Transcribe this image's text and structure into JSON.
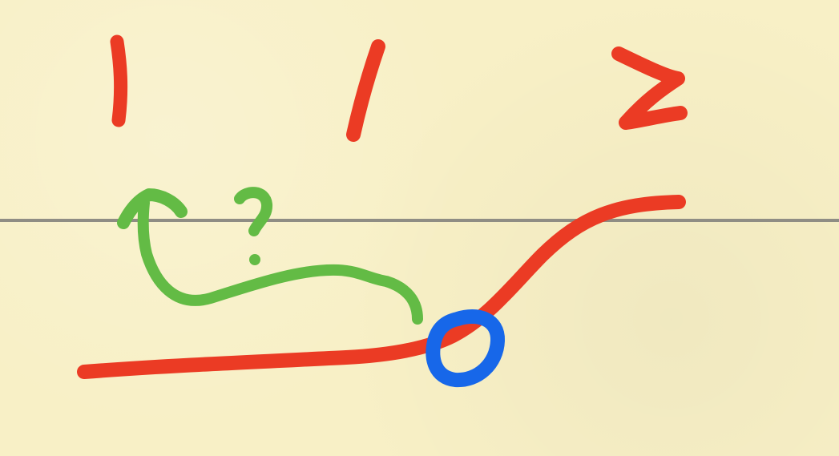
{
  "labels": {
    "first": "1",
    "second": "1",
    "third": "2",
    "question": "?"
  },
  "colors": {
    "paper": "#f8f0c6",
    "rule": "#8f8d84",
    "red_ink": "#eb3b24",
    "green_ink": "#63bb45",
    "blue_ink": "#1767e9"
  }
}
